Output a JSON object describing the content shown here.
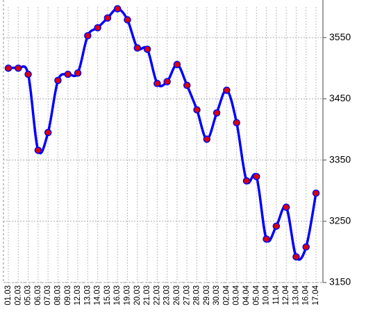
{
  "chart_data": {
    "type": "line",
    "categories": [
      "01.03",
      "02.03",
      "05.03",
      "06.03",
      "07.03",
      "08.03",
      "09.03",
      "12.03",
      "13.03",
      "14.03",
      "15.03",
      "16.03",
      "19.03",
      "20.03",
      "21.03",
      "22.03",
      "23.03",
      "26.03",
      "27.03",
      "28.03",
      "29.03",
      "30.03",
      "02.04",
      "03.04",
      "04.04",
      "05.04",
      "10.04",
      "11.04",
      "12.04",
      "13.04",
      "16.04",
      "17.04"
    ],
    "series": [
      {
        "color": "#0000ff",
        "marker_color": "#dd0000",
        "values": [
          3500,
          3500,
          3490,
          3366,
          3395,
          3480,
          3490,
          3492,
          3553,
          3566,
          3582,
          3597,
          3579,
          3533,
          3531,
          3475,
          3478,
          3506,
          3472,
          3432,
          3384,
          3427,
          3464,
          3411,
          3316,
          3323,
          3221,
          3242,
          3273,
          3192,
          3208,
          3296
        ]
      }
    ],
    "ylim": [
      3150,
      3600
    ],
    "yticks": [
      3150,
      3250,
      3350,
      3450,
      3550
    ],
    "grid": true,
    "y_axis_side": "right"
  }
}
